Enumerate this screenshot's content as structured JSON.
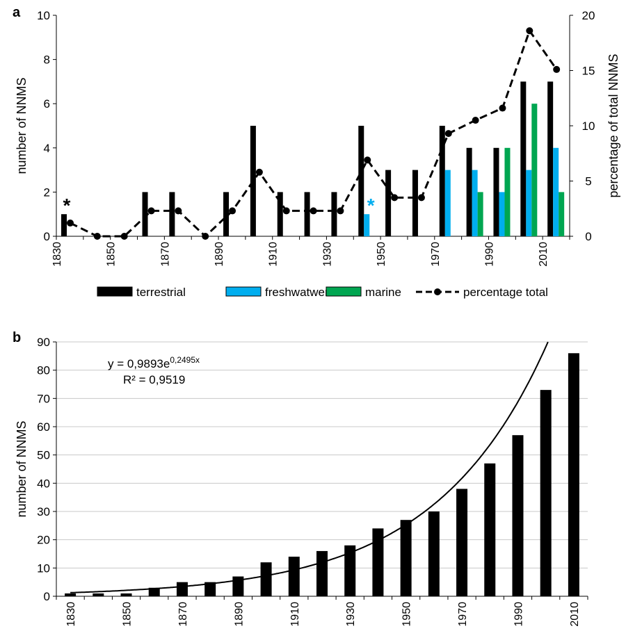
{
  "chart_data": [
    {
      "type": "bar",
      "panel_label": "a",
      "ylabel": "number of NNMS",
      "y2label": "percentage of total NNMS",
      "ylim": [
        0,
        10
      ],
      "y2lim": [
        0,
        20
      ],
      "yticks": [
        "0",
        "2",
        "4",
        "6",
        "8",
        "10"
      ],
      "y2ticks": [
        "0",
        "5",
        "10",
        "15",
        "20"
      ],
      "x_tick_labels": [
        "1830",
        "1850",
        "1870",
        "1890",
        "1910",
        "1930",
        "1950",
        "1970",
        "1990",
        "2010"
      ],
      "decades": [
        1830,
        1840,
        1850,
        1860,
        1870,
        1880,
        1890,
        1900,
        1910,
        1920,
        1930,
        1940,
        1950,
        1960,
        1970,
        1980,
        1990,
        2000,
        2010
      ],
      "series": [
        {
          "name": "terrestrial",
          "type": "bar",
          "color": "#000000",
          "values": [
            1,
            0,
            0,
            2,
            2,
            0,
            2,
            5,
            2,
            2,
            2,
            5,
            3,
            3,
            5,
            4,
            4,
            7,
            7
          ]
        },
        {
          "name": "freshwatwer",
          "type": "bar",
          "color": "#00aeef",
          "values": [
            0,
            0,
            0,
            0,
            0,
            0,
            0,
            0,
            0,
            0,
            0,
            1,
            0,
            0,
            3,
            3,
            2,
            3,
            4
          ]
        },
        {
          "name": "marine",
          "type": "bar",
          "color": "#00a651",
          "values": [
            0,
            0,
            0,
            0,
            0,
            0,
            0,
            0,
            0,
            0,
            0,
            0,
            0,
            0,
            0,
            2,
            4,
            6,
            2
          ]
        },
        {
          "name": "percentage total",
          "type": "line",
          "axis": "secondary",
          "color": "#000000",
          "values": [
            1.2,
            0,
            0,
            2.3,
            2.3,
            0,
            2.3,
            5.8,
            2.3,
            2.3,
            2.3,
            6.9,
            3.5,
            3.5,
            9.3,
            10.5,
            11.6,
            18.6,
            15.1
          ]
        }
      ],
      "annotations": [
        {
          "text": "*",
          "decade": 1830,
          "y": 1.6,
          "color": "#000000"
        },
        {
          "text": "*",
          "decade": 1940,
          "y": 1.6,
          "color": "#00aeef"
        }
      ],
      "legend_position": "bottom",
      "grid": false
    },
    {
      "type": "bar",
      "panel_label": "b",
      "ylabel": "number of NNMS",
      "ylim": [
        0,
        90
      ],
      "yticks": [
        "0",
        "10",
        "20",
        "30",
        "40",
        "50",
        "60",
        "70",
        "80",
        "90"
      ],
      "x_tick_labels": [
        "1830",
        "1850",
        "1870",
        "1890",
        "1910",
        "1930",
        "1950",
        "1970",
        "1990",
        "2010"
      ],
      "decades": [
        1830,
        1840,
        1850,
        1860,
        1870,
        1880,
        1890,
        1900,
        1910,
        1920,
        1930,
        1940,
        1950,
        1960,
        1970,
        1980,
        1990,
        2000,
        2010
      ],
      "values": [
        1,
        1,
        1,
        3,
        5,
        5,
        7,
        12,
        14,
        16,
        18,
        24,
        27,
        30,
        38,
        47,
        57,
        73,
        86
      ],
      "trendline": {
        "type": "exponential",
        "a": 0.9893,
        "b": 0.2495,
        "equation_prefix": "y = 0,9893e",
        "equation_exponent": "0,2495x",
        "r_squared_label": "R² = 0,9519"
      },
      "grid": true
    }
  ]
}
